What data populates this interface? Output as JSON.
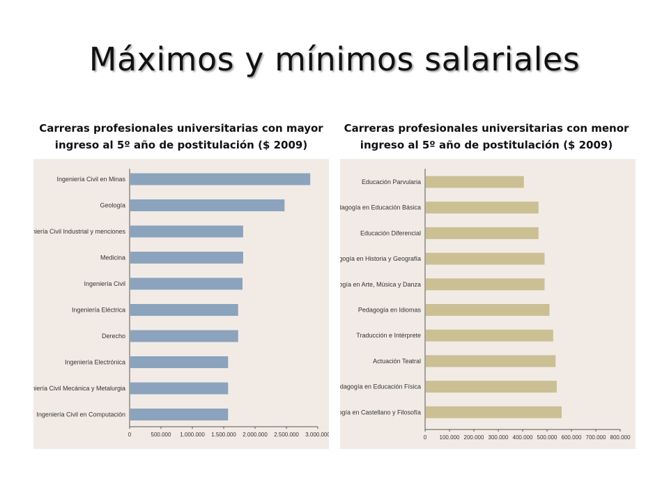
{
  "title": "Máximos y mínimos salariales",
  "chart_data": [
    {
      "type": "bar",
      "orientation": "horizontal",
      "title": "Carreras profesionales universitarias con mayor ingreso al 5º año de postitulación ($ 2009)",
      "categories": [
        "Ingeniería Civil en Minas",
        "Geología",
        "Ingeniería Civil Industrial y menciones",
        "Medicina",
        "Ingeniería Civil",
        "Ingeniería Eléctrica",
        "Derecho",
        "Ingeniería Electrónica",
        "Ingeniería Civil Mecánica y Metalurgia",
        "Ingeniería Civil en Computación"
      ],
      "values": [
        2880000,
        2470000,
        1810000,
        1810000,
        1800000,
        1730000,
        1730000,
        1570000,
        1570000,
        1570000
      ],
      "xlim": [
        0,
        3000000
      ],
      "xticks": [
        "0",
        "500.000",
        "1.000.000",
        "1.500.000",
        "2.000.000",
        "2.500.000",
        "3.000.000"
      ],
      "color": "#8ba3bd",
      "grid": false
    },
    {
      "type": "bar",
      "orientation": "horizontal",
      "title": "Carreras profesionales universitarias con menor ingreso al 5º año de postitulación ($ 2009)",
      "categories": [
        "Educación Parvularia",
        "Pedagogía en Educación Básica",
        "Educación Diferencial",
        "Pedagogía en Historia y Geografía",
        "Pedagogía en Arte, Música y Danza",
        "Pedagogía en Idiomas",
        "Traducción e Intérprete",
        "Actuación Teatral",
        "Pedagogía en Educación Física",
        "Pedagogía en Castellano y Filosofía"
      ],
      "values": [
        405000,
        465000,
        465000,
        490000,
        490000,
        510000,
        525000,
        535000,
        540000,
        560000
      ],
      "xlim": [
        0,
        800000
      ],
      "xticks": [
        "0",
        "100.000",
        "200.000",
        "300.000",
        "400.000",
        "500.000",
        "600.000",
        "700.000",
        "800.000"
      ],
      "color": "#cbbf94",
      "grid": false
    }
  ]
}
